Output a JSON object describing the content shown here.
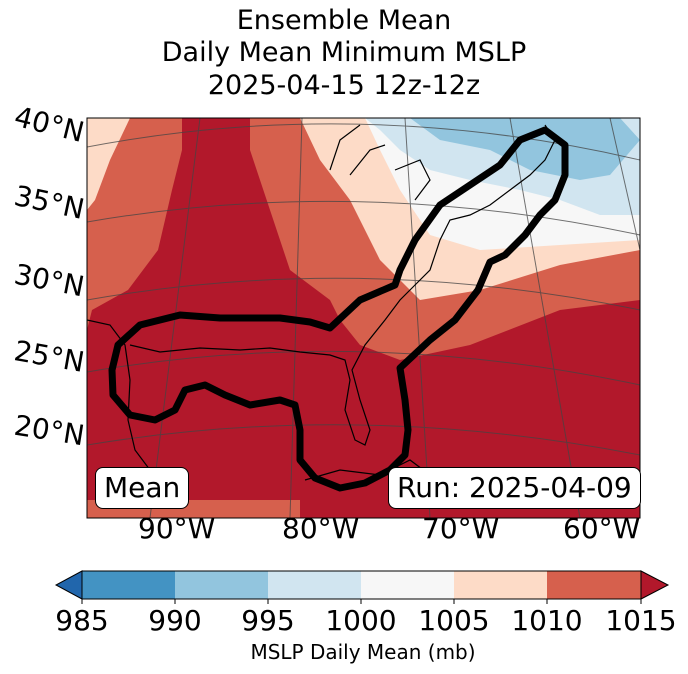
{
  "title": {
    "line1": "Ensemble Mean",
    "line2": "Daily Mean Minimum MSLP",
    "line3": "2025-04-15 12z-12z"
  },
  "map": {
    "lat_labels": [
      "40°N",
      "35°N",
      "30°N",
      "25°N",
      "20°N"
    ],
    "lon_labels": [
      "90°W",
      "80°W",
      "70°W",
      "60°W"
    ],
    "mean_label": "Mean",
    "run_label": "Run: 2025-04-09",
    "fill_colors": {
      "1010_1015": "#b2182b",
      "1005_1010": "#d6604d",
      "1000_1005": "#fddbc7",
      "995_1000": "#f7f7f7",
      "990_995": "#d1e5f0",
      "985_990": "#92c5de"
    }
  },
  "colorbar": {
    "ticks": [
      "985",
      "990",
      "995",
      "1000",
      "1005",
      "1010",
      "1015"
    ],
    "label": "MSLP Daily Mean (mb)",
    "colors": [
      "#4393c3",
      "#92c5de",
      "#d1e5f0",
      "#f7f7f7",
      "#fddbc7",
      "#d6604d",
      "#b2182b"
    ],
    "under_color": "#2166ac",
    "over_color": "#b2182b"
  }
}
